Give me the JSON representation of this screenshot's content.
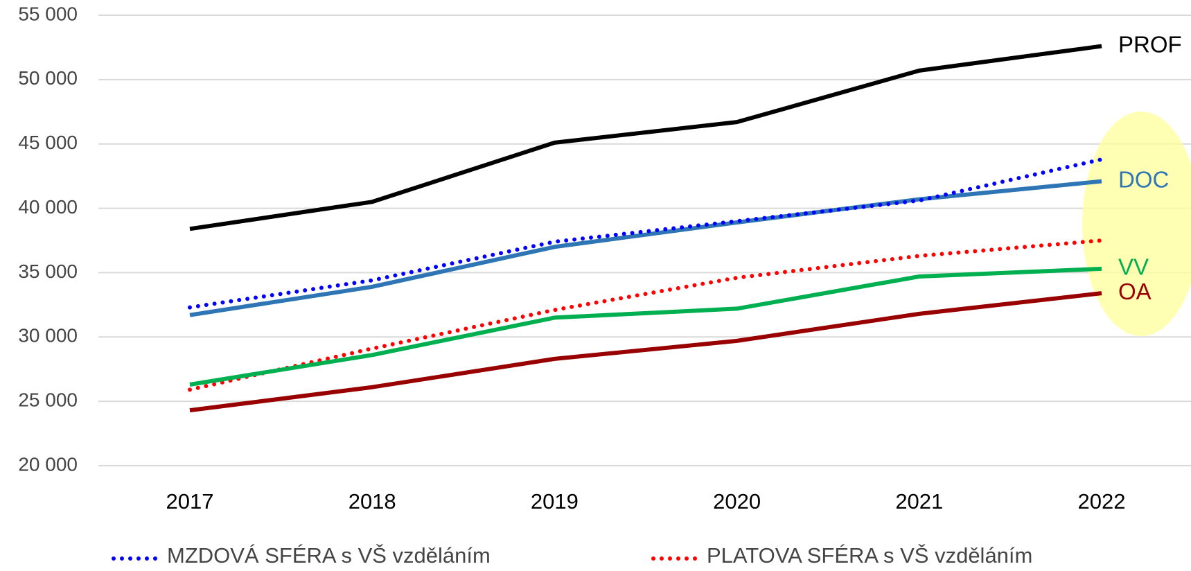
{
  "chart_data": {
    "type": "line",
    "categories": [
      "2017",
      "2018",
      "2019",
      "2020",
      "2021",
      "2022"
    ],
    "ylim": [
      20000,
      55000
    ],
    "yticks": [
      {
        "value": 20000,
        "label": "20 000"
      },
      {
        "value": 25000,
        "label": "25 000"
      },
      {
        "value": 30000,
        "label": "30 000"
      },
      {
        "value": 35000,
        "label": "35 000"
      },
      {
        "value": 40000,
        "label": "40 000"
      },
      {
        "value": 45000,
        "label": "45 000"
      },
      {
        "value": 50000,
        "label": "50 000"
      },
      {
        "value": 55000,
        "label": "55 000"
      }
    ],
    "grid": true,
    "series": [
      {
        "name": "PROF",
        "color": "#000000",
        "style": "solid",
        "values": [
          38400,
          40500,
          45100,
          46700,
          50700,
          52600
        ]
      },
      {
        "name": "DOC",
        "color": "#2e75b6",
        "style": "solid",
        "values": [
          31700,
          33900,
          37000,
          38900,
          40700,
          42100
        ]
      },
      {
        "name": "MZDOVÁ SFÉRA s VŠ vzděláním",
        "color": "#0000ff",
        "style": "dotted",
        "values": [
          32300,
          34400,
          37400,
          39000,
          40600,
          43800
        ]
      },
      {
        "name": "PLATOVA SFÉRA s VŠ vzděláním",
        "color": "#ff0000",
        "style": "dotted",
        "values": [
          25900,
          29100,
          32100,
          34600,
          36300,
          37500
        ]
      },
      {
        "name": "VV",
        "color": "#00b050",
        "style": "solid",
        "values": [
          26300,
          28600,
          31500,
          32200,
          34700,
          35300
        ]
      },
      {
        "name": "OA",
        "color": "#990000",
        "style": "solid",
        "values": [
          24300,
          26100,
          28300,
          29700,
          31800,
          33400
        ]
      }
    ]
  }
}
